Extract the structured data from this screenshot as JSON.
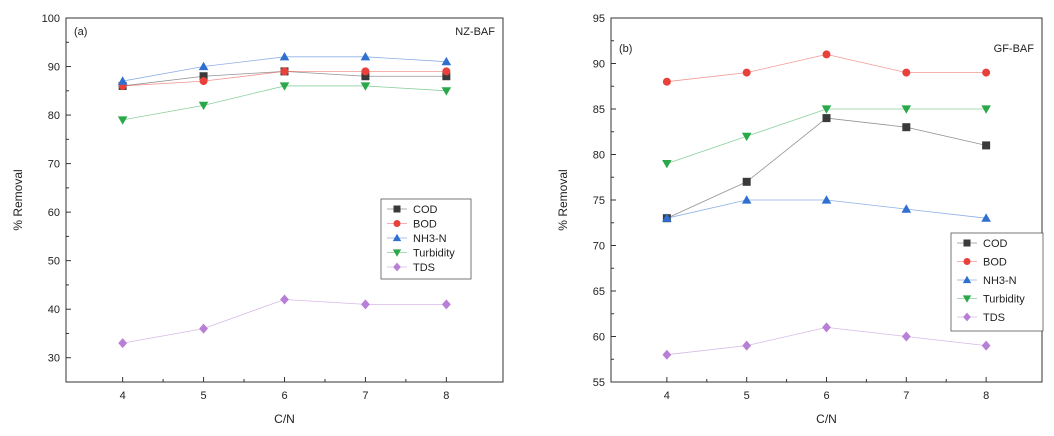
{
  "chart_data": [
    {
      "type": "line",
      "panel_label": "(a)",
      "title": "NZ-BAF",
      "xlabel": "C/N",
      "ylabel": "% Removal",
      "x": [
        4,
        5,
        6,
        7,
        8
      ],
      "xlim": [
        3.3,
        8.7
      ],
      "ylim": [
        25,
        100
      ],
      "yticks": [
        30,
        40,
        50,
        60,
        70,
        80,
        90,
        100
      ],
      "grid": false,
      "legend_position": "center-right",
      "series": [
        {
          "name": "COD",
          "color": "#3a3a3a",
          "marker": "square",
          "values": [
            86,
            88,
            89,
            88,
            88
          ]
        },
        {
          "name": "BOD",
          "color": "#e8413c",
          "marker": "circle",
          "values": [
            86,
            87,
            89,
            89,
            89
          ]
        },
        {
          "name": "NH3-N",
          "color": "#2f6fd0",
          "marker": "triangle-up",
          "values": [
            87,
            90,
            92,
            92,
            91
          ]
        },
        {
          "name": "Turbidity",
          "color": "#2aa84a",
          "marker": "triangle-down",
          "values": [
            79,
            82,
            86,
            86,
            85
          ]
        },
        {
          "name": "TDS",
          "color": "#b77fd6",
          "marker": "diamond",
          "values": [
            33,
            36,
            42,
            41,
            41
          ]
        }
      ]
    },
    {
      "type": "line",
      "panel_label": "(b)",
      "title": "GF-BAF",
      "xlabel": "C/N",
      "ylabel": "% Removal",
      "x": [
        4,
        5,
        6,
        7,
        8
      ],
      "xlim": [
        3.3,
        8.7
      ],
      "ylim": [
        55,
        95
      ],
      "yticks": [
        55,
        60,
        65,
        70,
        75,
        80,
        85,
        90,
        95
      ],
      "grid": false,
      "legend_position": "lower-right",
      "series": [
        {
          "name": "COD",
          "color": "#3a3a3a",
          "marker": "square",
          "values": [
            73,
            77,
            84,
            83,
            81
          ]
        },
        {
          "name": "BOD",
          "color": "#e8413c",
          "marker": "circle",
          "values": [
            88,
            89,
            91,
            89,
            89
          ]
        },
        {
          "name": "NH3-N",
          "color": "#2f6fd0",
          "marker": "triangle-up",
          "values": [
            73,
            75,
            75,
            74,
            73
          ]
        },
        {
          "name": "Turbidity",
          "color": "#2aa84a",
          "marker": "triangle-down",
          "values": [
            79,
            82,
            85,
            85,
            85
          ]
        },
        {
          "name": "TDS",
          "color": "#b77fd6",
          "marker": "diamond",
          "values": [
            58,
            59,
            61,
            60,
            59
          ]
        }
      ]
    }
  ]
}
